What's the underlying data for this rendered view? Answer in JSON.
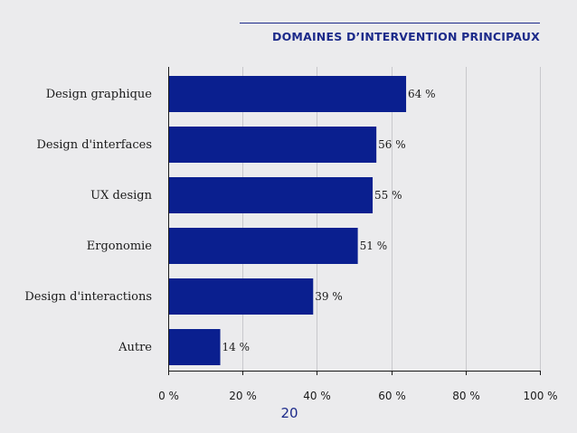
{
  "slide": {
    "title": "DOMAINES D’INTERVENTION PRINCIPAUX",
    "page_number": "20"
  },
  "colors": {
    "bar": "#0a1f8f",
    "title": "#1c2a8a",
    "background": "#ebebed",
    "gridline": "#c8c8cc",
    "text": "#1a1a1a"
  },
  "chart_data": {
    "type": "bar",
    "orientation": "horizontal",
    "title": "DOMAINES D’INTERVENTION PRINCIPAUX",
    "categories": [
      "Design graphique",
      "Design d'interfaces",
      "UX design",
      "Ergonomie",
      "Design d'interactions",
      "Autre"
    ],
    "values": [
      64,
      56,
      55,
      51,
      39,
      14
    ],
    "data_labels": [
      "64 %",
      "56 %",
      "55 %",
      "51 %",
      "39 %",
      "14 %"
    ],
    "xlim": [
      0,
      100
    ],
    "xticks": [
      0,
      20,
      40,
      60,
      80,
      100
    ],
    "xtick_labels": [
      "0 %",
      "20 %",
      "40 %",
      "60 %",
      "80 %",
      "100 %"
    ],
    "xlabel": "",
    "ylabel": "",
    "grid": "vertical",
    "legend": "none"
  }
}
